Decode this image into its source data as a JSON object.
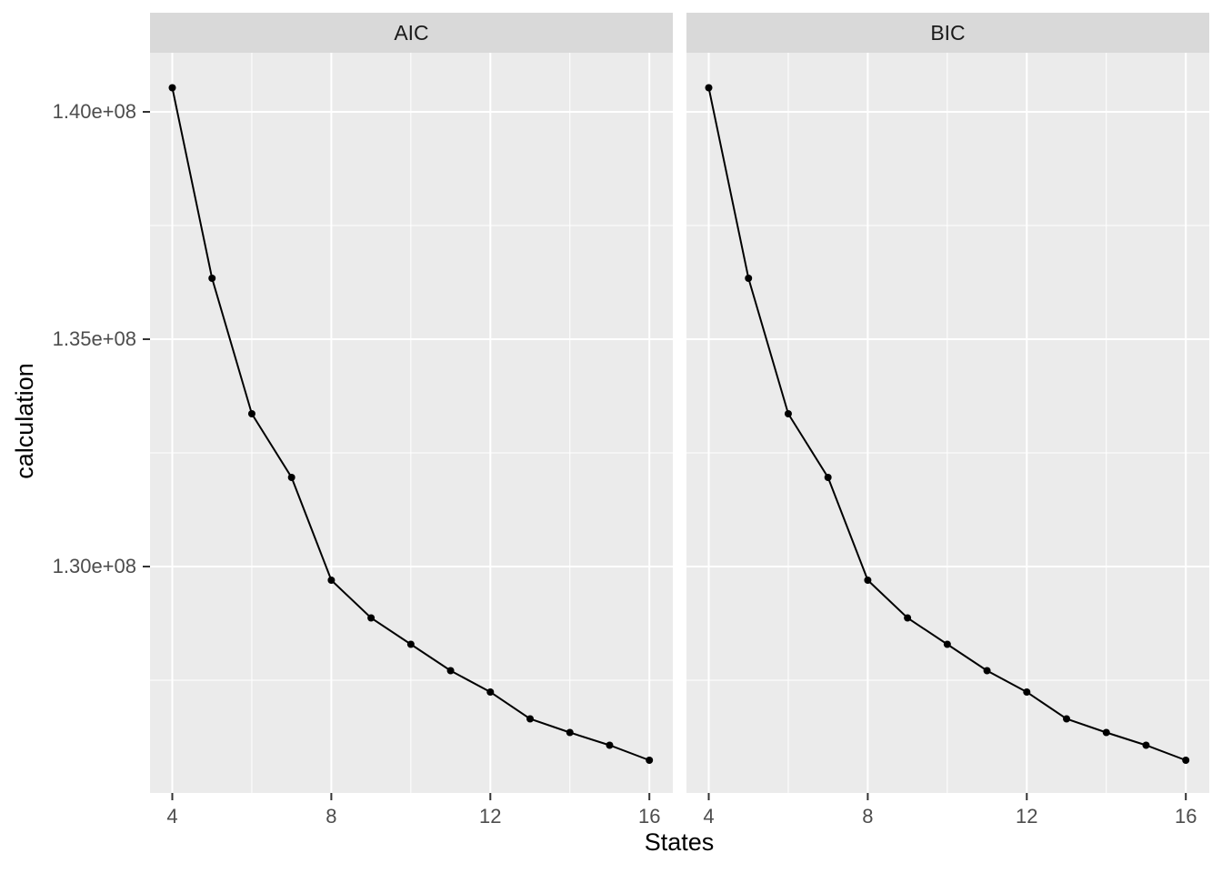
{
  "chart_data": {
    "type": "line",
    "title": "",
    "xlabel": "States",
    "ylabel": "calculation",
    "x": [
      4,
      5,
      6,
      7,
      8,
      9,
      10,
      11,
      12,
      13,
      14,
      15,
      16
    ],
    "facets": [
      {
        "label": "AIC",
        "values": [
          140530000,
          136340000,
          133360000,
          131960000,
          129700000,
          128870000,
          128290000,
          127710000,
          127240000,
          126650000,
          126350000,
          126070000,
          125740000
        ]
      },
      {
        "label": "BIC",
        "values": [
          140530000,
          136340000,
          133360000,
          131960000,
          129700000,
          128870000,
          128290000,
          127710000,
          127240000,
          126650000,
          126350000,
          126070000,
          125740000
        ]
      }
    ],
    "x_major_ticks": [
      4,
      8,
      12,
      16
    ],
    "x_minor_ticks": [
      6,
      10,
      14
    ],
    "y_major_ticks": [
      {
        "value": 140000000,
        "label": "1.40e+08"
      },
      {
        "value": 135000000,
        "label": "1.35e+08"
      },
      {
        "value": 130000000,
        "label": "1.30e+08"
      }
    ],
    "y_minor_ticks": [
      137500000,
      132500000,
      127500000
    ],
    "xlim": [
      3.44,
      16.56
    ],
    "ylim": [
      125020000,
      141300000
    ],
    "grid": true,
    "legend_position": "none",
    "colors": {
      "figure_background": "#FFFFFF",
      "panel_background": "#EBEBEB",
      "strip_background": "#D9D9D9",
      "gridline": "#FFFFFF",
      "line": "#000000",
      "point": "#000000",
      "tick_mark": "#333333",
      "tick_label": "#4D4D4D",
      "axis_title": "#000000",
      "strip_text": "#1A1A1A"
    }
  }
}
